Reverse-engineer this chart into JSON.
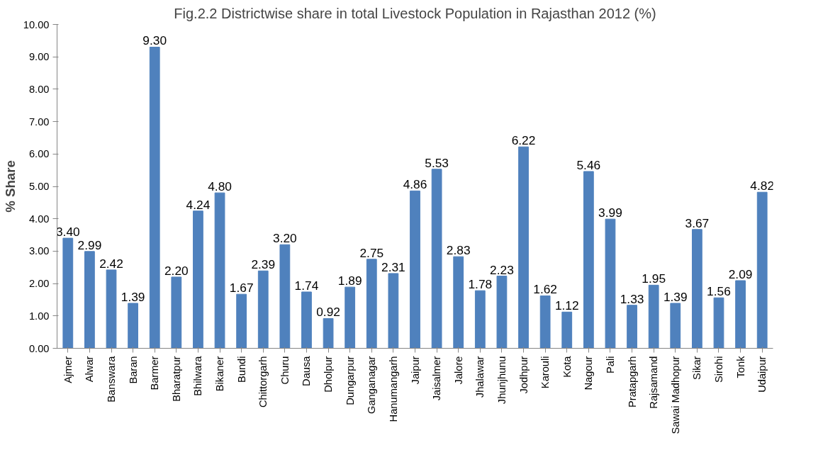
{
  "chart_data": {
    "type": "bar",
    "title": "Fig.2.2 Districtwise share in total Livestock Population in Rajasthan 2012 (%)",
    "ylabel": "% Share",
    "categories": [
      "Ajmer",
      "Alwar",
      "Banswara",
      "Baran",
      "Barmer",
      "Bharatpur",
      "Bhilwara",
      "Bikaner",
      "Bundi",
      "Chittorgarh",
      "Churu",
      "Dausa",
      "Dholpur",
      "Dungarpur",
      "Ganganagar",
      "Hanumangarh",
      "Jaipur",
      "Jaisalmer",
      "Jalore",
      "Jhalawar",
      "Jhunjhunu",
      "Jodhpur",
      "Karouli",
      "Kota",
      "Nagour",
      "Pali",
      "Pratapgarh",
      "Rajsamand",
      "Sawai Madhopur",
      "Sikar",
      "Sirohi",
      "Tonk",
      "Udaipur"
    ],
    "values": [
      3.4,
      2.99,
      2.42,
      1.39,
      9.3,
      2.2,
      4.24,
      4.8,
      1.67,
      2.39,
      3.2,
      1.74,
      0.92,
      1.89,
      2.75,
      2.31,
      4.86,
      5.53,
      2.83,
      1.78,
      2.23,
      6.22,
      1.62,
      1.12,
      5.46,
      3.99,
      1.33,
      1.95,
      1.39,
      3.67,
      1.56,
      2.09,
      4.82
    ],
    "value_labels": [
      "3.40",
      "2.99",
      "2.42",
      "1.39",
      "9.30",
      "2.20",
      "4.24",
      "4.80",
      "1.67",
      "2.39",
      "3.20",
      "1.74",
      "0.92",
      "1.89",
      "2.75",
      "2.31",
      "4.86",
      "5.53",
      "2.83",
      "1.78",
      "2.23",
      "6.22",
      "1.62",
      "1.12",
      "5.46",
      "3.99",
      "1.33",
      "1.95",
      "1.39",
      "3.67",
      "1.56",
      "2.09",
      "4.82"
    ],
    "color": "#4f81bd",
    "ylim": [
      0,
      10
    ],
    "yticks": [
      {
        "value": 0,
        "label": "0.00"
      },
      {
        "value": 1,
        "label": "1.00"
      },
      {
        "value": 2,
        "label": "2.00"
      },
      {
        "value": 3,
        "label": "3.00"
      },
      {
        "value": 4,
        "label": "4.00"
      },
      {
        "value": 5,
        "label": "5.00"
      },
      {
        "value": 6,
        "label": "6.00"
      },
      {
        "value": 7,
        "label": "7.00"
      },
      {
        "value": 8,
        "label": "8.00"
      },
      {
        "value": 9,
        "label": "9.00"
      },
      {
        "value": 10,
        "label": "10.00"
      }
    ],
    "grid": false
  }
}
